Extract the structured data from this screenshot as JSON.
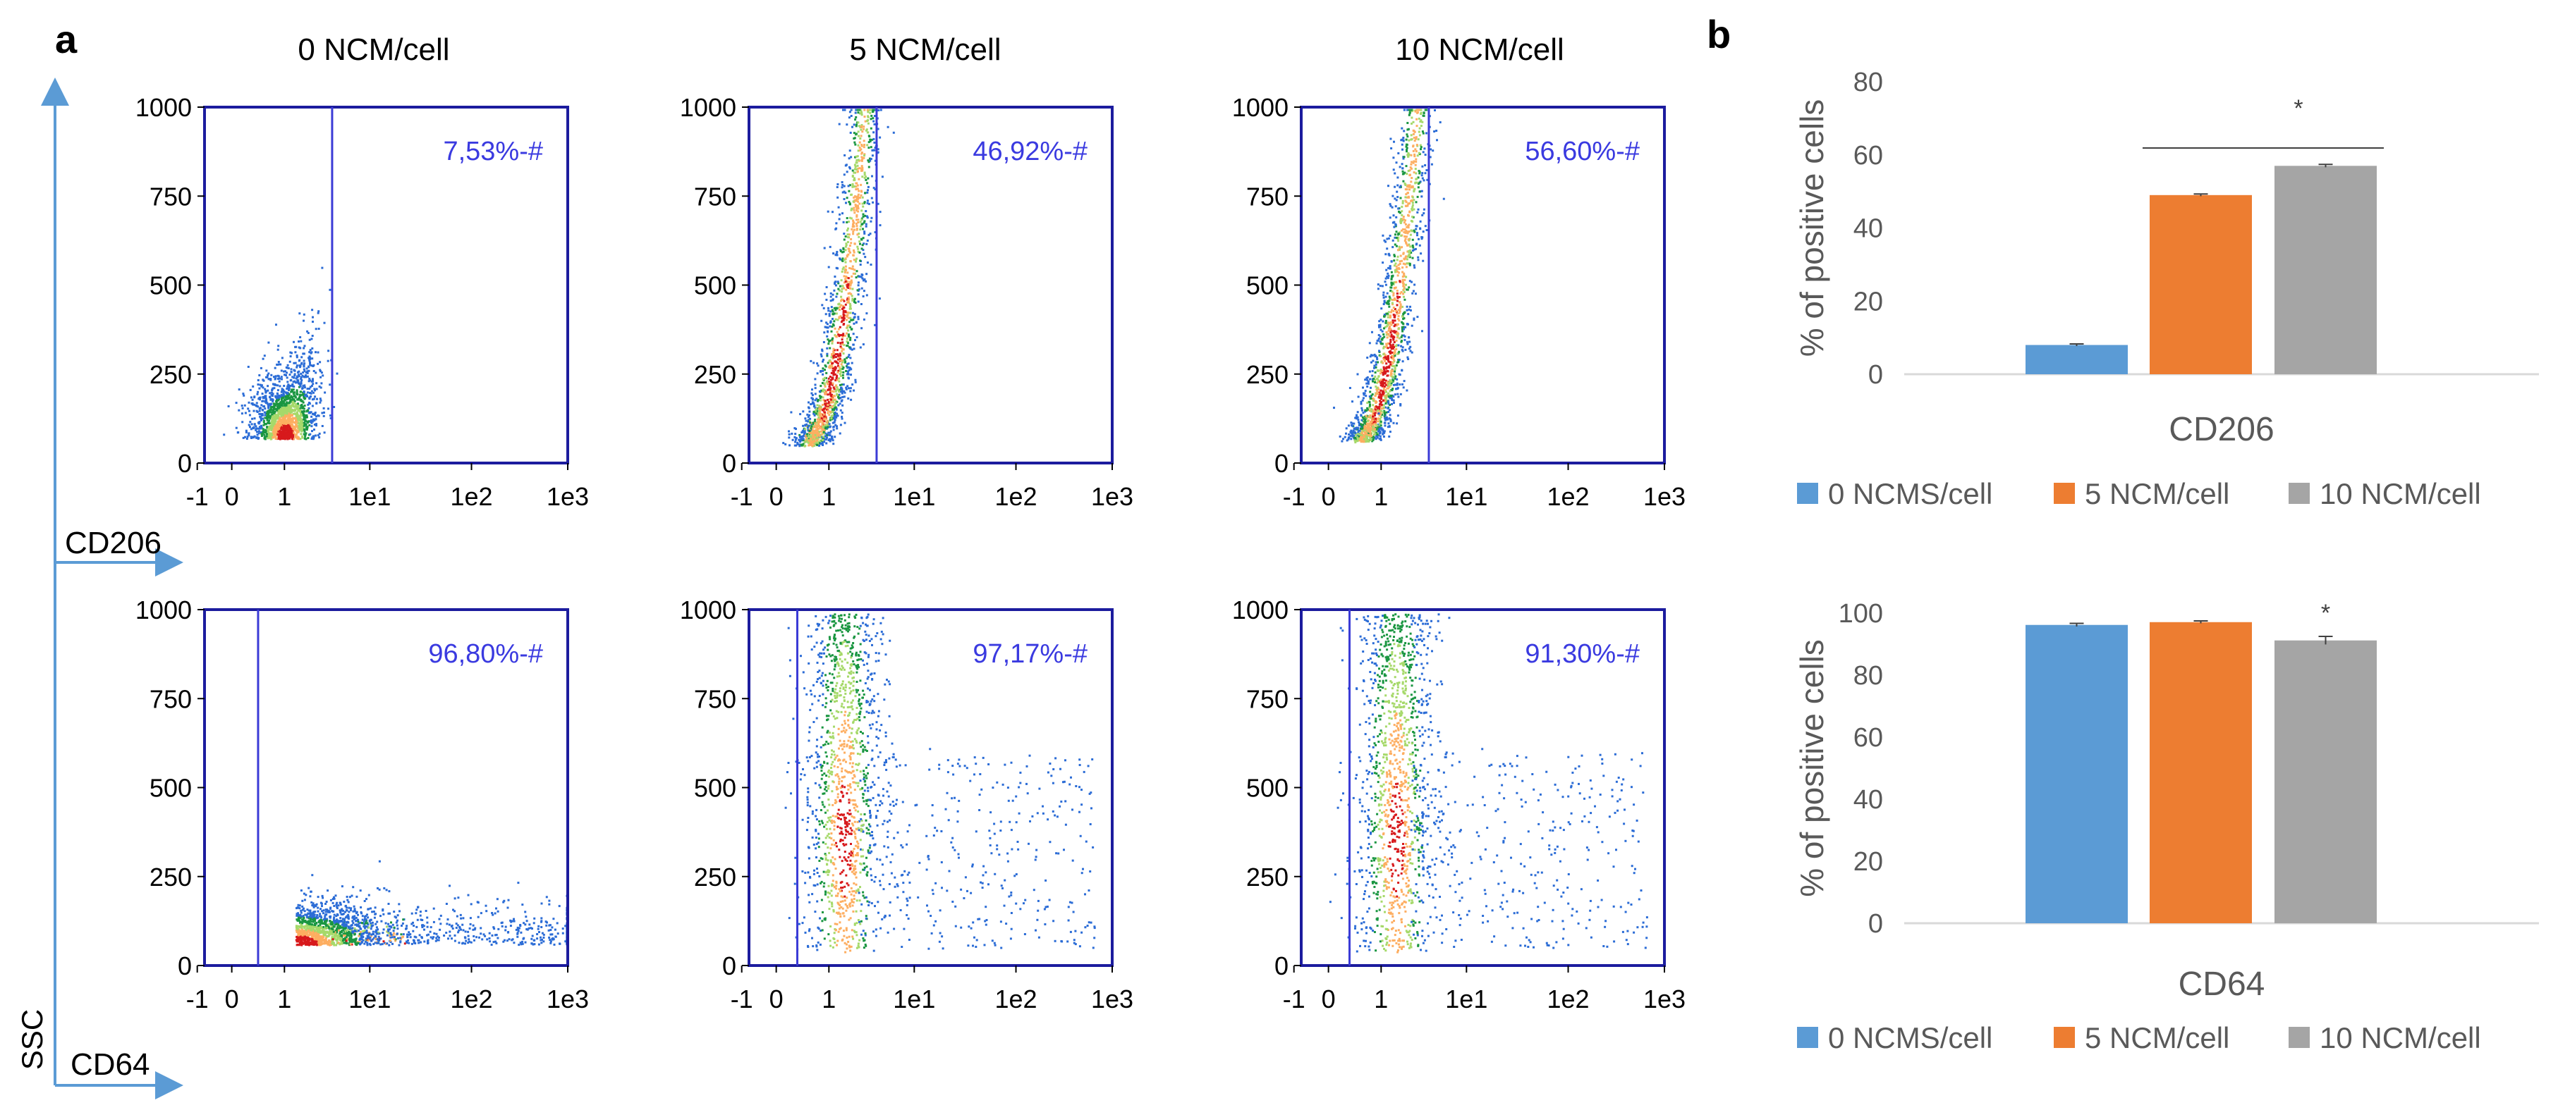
{
  "panels": {
    "a": "a",
    "b": "b"
  },
  "axis_labels": {
    "ssc": "SSC",
    "cd206": "CD206",
    "cd64": "CD64"
  },
  "conditions": [
    "0 NCM/cell",
    "5 NCM/cell",
    "10 NCM/cell"
  ],
  "chart_data": [
    {
      "id": "flow-cd206-0",
      "type": "scatter",
      "marker": "CD206",
      "condition": "0 NCM/cell",
      "gate_pct": "7,53%-#",
      "xlim": [
        -1,
        1000
      ],
      "ylim": [
        0,
        1000
      ],
      "x_ticks": [
        "-1",
        "0",
        "1",
        "1e1",
        "1e2",
        "1e3"
      ],
      "y_ticks": [
        "0",
        "250",
        "500",
        "750",
        "1000"
      ],
      "gate_x": 3.2,
      "population": {
        "kind": "blob",
        "cx": 1,
        "cy": 70,
        "sx": 0.6,
        "sy": 60
      }
    },
    {
      "id": "flow-cd206-5",
      "type": "scatter",
      "marker": "CD206",
      "condition": "5 NCM/cell",
      "gate_pct": "46,92%-#",
      "xlim": [
        -1,
        1000
      ],
      "ylim": [
        0,
        1000
      ],
      "x_ticks": [
        "-1",
        "0",
        "1",
        "1e1",
        "1e2",
        "1e3"
      ],
      "y_ticks": [
        "0",
        "250",
        "500",
        "750",
        "1000"
      ],
      "gate_x": 3.2,
      "population": {
        "kind": "diagonal",
        "cx": 2.8,
        "cy": 400
      }
    },
    {
      "id": "flow-cd206-10",
      "type": "scatter",
      "marker": "CD206",
      "condition": "10 NCM/cell",
      "gate_pct": "56,60%-#",
      "xlim": [
        -1,
        1000
      ],
      "ylim": [
        0,
        1000
      ],
      "x_ticks": [
        "-1",
        "0",
        "1",
        "1e1",
        "1e2",
        "1e3"
      ],
      "y_ticks": [
        "0",
        "250",
        "500",
        "750",
        "1000"
      ],
      "gate_x": 3.2,
      "population": {
        "kind": "diagonal",
        "cx": 3.2,
        "cy": 450
      }
    },
    {
      "id": "flow-cd64-0",
      "type": "scatter",
      "marker": "CD64",
      "condition": "0 NCM/cell",
      "gate_pct": "96,80%-#",
      "xlim": [
        -1,
        1000
      ],
      "ylim": [
        0,
        1000
      ],
      "x_ticks": [
        "-1",
        "0",
        "1",
        "1e1",
        "1e2",
        "1e3"
      ],
      "y_ticks": [
        "0",
        "250",
        "500",
        "750",
        "1000"
      ],
      "gate_x": 0.5,
      "population": {
        "kind": "horizontal",
        "cx": 1.5,
        "cy": 70
      }
    },
    {
      "id": "flow-cd64-5",
      "type": "scatter",
      "marker": "CD64",
      "condition": "5 NCM/cell",
      "gate_pct": "97,17%-#",
      "xlim": [
        -1,
        1000
      ],
      "ylim": [
        0,
        1000
      ],
      "x_ticks": [
        "-1",
        "0",
        "1",
        "1e1",
        "1e2",
        "1e3"
      ],
      "y_ticks": [
        "0",
        "250",
        "500",
        "750",
        "1000"
      ],
      "gate_x": 0.4,
      "population": {
        "kind": "vertical",
        "cx": 2.2,
        "cy": 300
      }
    },
    {
      "id": "flow-cd64-10",
      "type": "scatter",
      "marker": "CD64",
      "condition": "10 NCM/cell",
      "gate_pct": "91,30%-#",
      "xlim": [
        -1,
        1000
      ],
      "ylim": [
        0,
        1000
      ],
      "x_ticks": [
        "-1",
        "0",
        "1",
        "1e1",
        "1e2",
        "1e3"
      ],
      "y_ticks": [
        "0",
        "250",
        "500",
        "750",
        "1000"
      ],
      "gate_x": 0.4,
      "population": {
        "kind": "vertical",
        "cx": 1.8,
        "cy": 320
      }
    },
    {
      "id": "bar-cd206",
      "type": "bar",
      "xlabel": "CD206",
      "ylabel": "% of positive cells",
      "ylim": [
        0,
        80
      ],
      "y_ticks": [
        0,
        20,
        40,
        60,
        80
      ],
      "categories": [
        "0 NCMS/cell",
        "5 NCM/cell",
        "10 NCM/cell"
      ],
      "values": [
        8,
        49,
        57
      ],
      "errors": [
        0.3,
        0.3,
        0.4
      ],
      "colors": [
        "#5b9bd5",
        "#ed7d31",
        "#a5a5a5"
      ],
      "significance": {
        "label": "*",
        "from": 1,
        "to": 2
      },
      "legend": [
        "0 NCMS/cell",
        "5 NCM/cell",
        "10 NCM/cell"
      ]
    },
    {
      "id": "bar-cd64",
      "type": "bar",
      "xlabel": "CD64",
      "ylabel": "% of positive cells",
      "ylim": [
        0,
        100
      ],
      "y_ticks": [
        0,
        20,
        40,
        60,
        80,
        100
      ],
      "categories": [
        "0 NCMS/cell",
        "5 NCM/cell",
        "10 NCM/cell"
      ],
      "values": [
        96.2,
        97.1,
        91.2
      ],
      "errors": [
        0.5,
        0.4,
        1.3
      ],
      "colors": [
        "#5b9bd5",
        "#ed7d31",
        "#a5a5a5"
      ],
      "significance": {
        "label": "*",
        "bar": 2
      },
      "legend": [
        "0 NCMS/cell",
        "5 NCM/cell",
        "10 NCM/cell"
      ]
    }
  ]
}
